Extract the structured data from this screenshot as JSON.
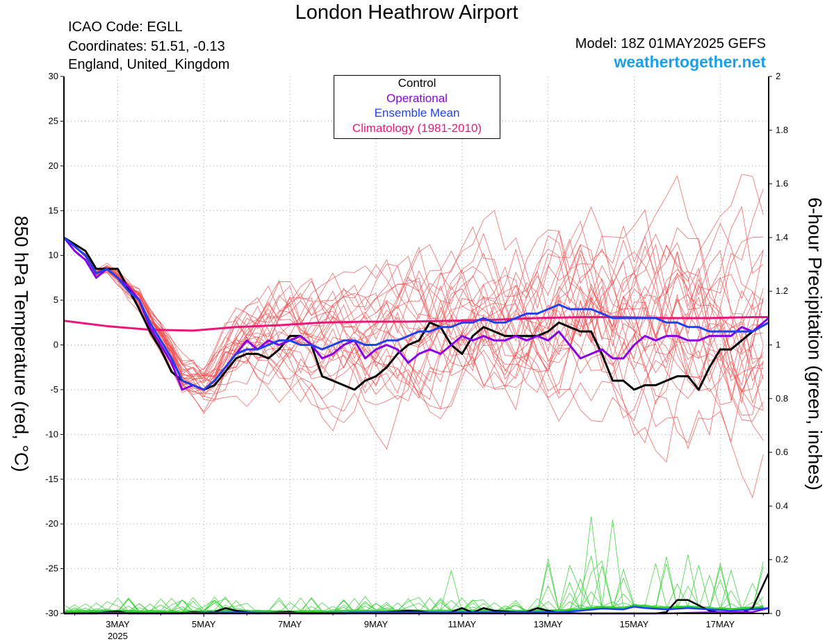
{
  "header": {
    "title": "London Heathrow Airport",
    "icao": "ICAO Code: EGLL",
    "coordinates": "Coordinates: 51.51, -0.13",
    "region": "England, United_Kingdom",
    "model": "Model: 18Z 01MAY2025 GEFS",
    "site": "weathertogether.net"
  },
  "legend": {
    "control": "Control",
    "operational": "Operational",
    "ensemble_mean": "Ensemble Mean",
    "climatology": "Climatology (1981-2010)"
  },
  "colors": {
    "control": "#000000",
    "operational": "#8a00e6",
    "ensemble_mean": "#2040f0",
    "climatology": "#e8187a",
    "members_temp": "#f05050",
    "members_precip": "#30d030",
    "site": "#17a0f0"
  },
  "chart_data": {
    "type": "line",
    "ylabel": "850 hPa Temperature (red, °C)",
    "y2label": "6-hour Precipitation (green, inches)",
    "ylim": [
      -30,
      30
    ],
    "y2lim": [
      0,
      2
    ],
    "yticks": [
      "30",
      "25",
      "20",
      "15",
      "10",
      "5",
      "0",
      "-5",
      "-10",
      "-15",
      "-20",
      "-25",
      "-30"
    ],
    "y2ticks": [
      "2",
      "1.8",
      "1.6",
      "1.4",
      "1.2",
      "1",
      "0.8",
      "0.6",
      "0.4",
      "0.2",
      "0"
    ],
    "xlim": [
      0,
      16.375
    ],
    "xticks": [
      {
        "day": 1.25,
        "label": "3MAY"
      },
      {
        "day": 3.25,
        "label": "5MAY"
      },
      {
        "day": 5.25,
        "label": "7MAY"
      },
      {
        "day": 7.25,
        "label": "9MAY"
      },
      {
        "day": 9.25,
        "label": "11MAY"
      },
      {
        "day": 11.25,
        "label": "13MAY"
      },
      {
        "day": 13.25,
        "label": "15MAY"
      },
      {
        "day": 15.25,
        "label": "17MAY"
      }
    ],
    "year_label": "2025",
    "grid": true,
    "legend_position": "top-center",
    "series": [
      {
        "name": "Control",
        "points": [
          [
            0,
            12
          ],
          [
            0.5,
            10.5
          ],
          [
            0.75,
            8.5
          ],
          [
            1.25,
            8.5
          ],
          [
            1.75,
            4
          ],
          [
            2,
            1.5
          ],
          [
            2.25,
            -0.5
          ],
          [
            2.5,
            -3
          ],
          [
            2.75,
            -4
          ],
          [
            3,
            -4.5
          ],
          [
            3.25,
            -5
          ],
          [
            3.5,
            -4.5
          ],
          [
            3.75,
            -3
          ],
          [
            4,
            -1.5
          ],
          [
            4.25,
            -1
          ],
          [
            4.5,
            -1
          ],
          [
            4.75,
            -1.5
          ],
          [
            5,
            -0.5
          ],
          [
            5.25,
            1
          ],
          [
            5.5,
            1
          ],
          [
            5.75,
            0
          ],
          [
            6,
            -3.5
          ],
          [
            6.25,
            -4
          ],
          [
            6.5,
            -4.5
          ],
          [
            6.75,
            -5
          ],
          [
            7,
            -4
          ],
          [
            7.25,
            -3.5
          ],
          [
            7.5,
            -2.5
          ],
          [
            7.75,
            -1
          ],
          [
            8,
            0
          ],
          [
            8.25,
            0.5
          ],
          [
            8.5,
            2.5
          ],
          [
            8.75,
            2
          ],
          [
            9,
            0
          ],
          [
            9.25,
            -1
          ],
          [
            9.5,
            1
          ],
          [
            9.75,
            2
          ],
          [
            10,
            1.5
          ],
          [
            10.25,
            1
          ],
          [
            10.5,
            1
          ],
          [
            10.75,
            1
          ],
          [
            11,
            1
          ],
          [
            11.25,
            1.5
          ],
          [
            11.5,
            2.5
          ],
          [
            11.75,
            2
          ],
          [
            12,
            1.5
          ],
          [
            12.25,
            1.5
          ],
          [
            12.5,
            -1
          ],
          [
            12.75,
            -4
          ],
          [
            13,
            -4
          ],
          [
            13.25,
            -5
          ],
          [
            13.5,
            -4.5
          ],
          [
            13.75,
            -4.5
          ],
          [
            14,
            -4
          ],
          [
            14.25,
            -3.5
          ],
          [
            14.5,
            -3.5
          ],
          [
            14.75,
            -5
          ],
          [
            15,
            -2.5
          ],
          [
            15.25,
            -0.5
          ],
          [
            15.5,
            -0.5
          ],
          [
            15.75,
            0.5
          ],
          [
            16,
            1.5
          ],
          [
            16.375,
            2.5
          ]
        ]
      },
      {
        "name": "Operational",
        "points": [
          [
            0,
            12
          ],
          [
            0.25,
            10.5
          ],
          [
            0.5,
            9.5
          ],
          [
            0.75,
            7.5
          ],
          [
            1,
            8.5
          ],
          [
            1.25,
            7.5
          ],
          [
            1.5,
            6.5
          ],
          [
            1.75,
            5
          ],
          [
            2,
            2
          ],
          [
            2.25,
            0
          ],
          [
            2.5,
            -2
          ],
          [
            2.75,
            -5
          ],
          [
            3,
            -4.5
          ],
          [
            3.25,
            -5
          ],
          [
            3.5,
            -4
          ],
          [
            3.75,
            -2.5
          ],
          [
            4,
            -1
          ],
          [
            4.25,
            0.5
          ],
          [
            4.5,
            -0.5
          ],
          [
            4.75,
            0.5
          ],
          [
            5,
            0
          ],
          [
            5.25,
            0.5
          ],
          [
            5.5,
            1
          ],
          [
            5.75,
            0
          ],
          [
            6,
            -1.5
          ],
          [
            6.25,
            -1
          ],
          [
            6.5,
            0
          ],
          [
            6.75,
            0.5
          ],
          [
            7,
            -1.5
          ],
          [
            7.25,
            -0.5
          ],
          [
            7.5,
            0
          ],
          [
            7.75,
            -0.5
          ],
          [
            8,
            -2
          ],
          [
            8.25,
            -1
          ],
          [
            8.5,
            -0.5
          ],
          [
            8.75,
            -1
          ],
          [
            9,
            0
          ],
          [
            9.25,
            1
          ],
          [
            9.5,
            0.5
          ],
          [
            9.75,
            1
          ],
          [
            10,
            0.5
          ],
          [
            10.25,
            0.5
          ],
          [
            10.5,
            1
          ],
          [
            10.75,
            0.5
          ],
          [
            11,
            1
          ],
          [
            11.25,
            0.5
          ],
          [
            11.5,
            1.5
          ],
          [
            11.75,
            0
          ],
          [
            12,
            -1.5
          ],
          [
            12.25,
            -1
          ],
          [
            12.5,
            -0.5
          ],
          [
            12.75,
            -1.5
          ],
          [
            13,
            -1.5
          ],
          [
            13.25,
            0
          ],
          [
            13.5,
            1
          ],
          [
            13.75,
            0.5
          ],
          [
            14,
            1
          ],
          [
            14.25,
            1
          ],
          [
            14.5,
            0.5
          ],
          [
            14.75,
            0.5
          ],
          [
            15,
            1
          ],
          [
            15.25,
            1
          ],
          [
            15.5,
            1
          ],
          [
            15.75,
            2
          ],
          [
            16,
            1.5
          ],
          [
            16.375,
            3
          ]
        ]
      },
      {
        "name": "Ensemble Mean",
        "points": [
          [
            0,
            12
          ],
          [
            0.5,
            10
          ],
          [
            0.75,
            8
          ],
          [
            1,
            8.5
          ],
          [
            1.25,
            7.5
          ],
          [
            1.5,
            6
          ],
          [
            1.75,
            5
          ],
          [
            2,
            2.5
          ],
          [
            2.25,
            0.5
          ],
          [
            2.5,
            -1.5
          ],
          [
            2.75,
            -4
          ],
          [
            3,
            -4.5
          ],
          [
            3.25,
            -5
          ],
          [
            3.5,
            -4
          ],
          [
            3.75,
            -2.5
          ],
          [
            4,
            -1
          ],
          [
            4.25,
            -0.5
          ],
          [
            4.5,
            -0.5
          ],
          [
            4.75,
            0
          ],
          [
            5,
            0.5
          ],
          [
            5.25,
            0.5
          ],
          [
            5.5,
            0
          ],
          [
            5.75,
            0
          ],
          [
            6,
            -0.5
          ],
          [
            6.25,
            0
          ],
          [
            6.5,
            0.5
          ],
          [
            6.75,
            0.5
          ],
          [
            7,
            0
          ],
          [
            7.25,
            0
          ],
          [
            7.5,
            0.5
          ],
          [
            7.75,
            0.5
          ],
          [
            8,
            1
          ],
          [
            8.25,
            1.5
          ],
          [
            8.5,
            1.5
          ],
          [
            8.75,
            2
          ],
          [
            9,
            2
          ],
          [
            9.25,
            2.5
          ],
          [
            9.5,
            2.5
          ],
          [
            9.75,
            3
          ],
          [
            10,
            2.5
          ],
          [
            10.25,
            2.5
          ],
          [
            10.5,
            3
          ],
          [
            10.75,
            3.5
          ],
          [
            11,
            3.5
          ],
          [
            11.25,
            4
          ],
          [
            11.5,
            4.5
          ],
          [
            11.75,
            4
          ],
          [
            12,
            4
          ],
          [
            12.25,
            4
          ],
          [
            12.5,
            3.5
          ],
          [
            12.75,
            3
          ],
          [
            13,
            3
          ],
          [
            13.25,
            3
          ],
          [
            13.5,
            3
          ],
          [
            13.75,
            3
          ],
          [
            14,
            2.5
          ],
          [
            14.25,
            2.5
          ],
          [
            14.5,
            2
          ],
          [
            14.75,
            2
          ],
          [
            15,
            1.5
          ],
          [
            15.25,
            1.5
          ],
          [
            15.5,
            1.5
          ],
          [
            15.75,
            1.5
          ],
          [
            16,
            1.5
          ],
          [
            16.375,
            2.5
          ]
        ]
      },
      {
        "name": "Climatology (1981-2010)",
        "points": [
          [
            0,
            2.7
          ],
          [
            1,
            2.1
          ],
          [
            2,
            1.7
          ],
          [
            3,
            1.6
          ],
          [
            4,
            2
          ],
          [
            5,
            2.2
          ],
          [
            6,
            2.5
          ],
          [
            7,
            2.6
          ],
          [
            8,
            2.6
          ],
          [
            9,
            2.7
          ],
          [
            10,
            2.8
          ],
          [
            11,
            3
          ],
          [
            12,
            3.1
          ],
          [
            13,
            3.1
          ],
          [
            14,
            3
          ],
          [
            15,
            3
          ],
          [
            16,
            3.1
          ],
          [
            16.375,
            3.1
          ]
        ]
      }
    ],
    "precip_series": [
      {
        "name": "Control",
        "points": [
          [
            0,
            0
          ],
          [
            0.75,
            0
          ],
          [
            1,
            0.005
          ],
          [
            1.25,
            0.008
          ],
          [
            1.5,
            0
          ],
          [
            2,
            0
          ],
          [
            2.5,
            0
          ],
          [
            2.75,
            0
          ],
          [
            3,
            0.005
          ],
          [
            3.25,
            0.003
          ],
          [
            3.5,
            0.005
          ],
          [
            3.75,
            0.02
          ],
          [
            4,
            0.01
          ],
          [
            4.5,
            0
          ],
          [
            5,
            0.004
          ],
          [
            5.25,
            0.006
          ],
          [
            5.5,
            0
          ],
          [
            6,
            0
          ],
          [
            6.5,
            0
          ],
          [
            7,
            0.003
          ],
          [
            7.5,
            0.005
          ],
          [
            8,
            0.01
          ],
          [
            8.25,
            0.008
          ],
          [
            8.5,
            0.003
          ],
          [
            8.75,
            0
          ],
          [
            9,
            0.005
          ],
          [
            9.25,
            0.02
          ],
          [
            9.5,
            0.003
          ],
          [
            9.75,
            0.02
          ],
          [
            10,
            0.01
          ],
          [
            10.5,
            0.005
          ],
          [
            10.75,
            0.005
          ],
          [
            11,
            0.02
          ],
          [
            11.25,
            0.01
          ],
          [
            11.5,
            0.003
          ],
          [
            12,
            0
          ],
          [
            12.5,
            0
          ],
          [
            13,
            0
          ],
          [
            13.5,
            0
          ],
          [
            13.75,
            0
          ],
          [
            14,
            0.005
          ],
          [
            14.25,
            0.05
          ],
          [
            14.5,
            0.05
          ],
          [
            14.75,
            0.03
          ],
          [
            15,
            0.01
          ],
          [
            15.25,
            0.003
          ],
          [
            15.5,
            0
          ],
          [
            15.75,
            0.002
          ],
          [
            16,
            0.02
          ],
          [
            16.375,
            0.15
          ]
        ]
      },
      {
        "name": "Operational",
        "points": [
          [
            0,
            0
          ],
          [
            2,
            0
          ],
          [
            4,
            0
          ],
          [
            6,
            0
          ],
          [
            8,
            0
          ],
          [
            10,
            0
          ],
          [
            12,
            0
          ],
          [
            14,
            0
          ],
          [
            15,
            0.004
          ],
          [
            16,
            0.005
          ],
          [
            16.375,
            0.02
          ]
        ]
      },
      {
        "name": "Ensemble Mean",
        "points": [
          [
            0,
            0
          ],
          [
            1,
            0.003
          ],
          [
            2,
            0.001
          ],
          [
            3,
            0.002
          ],
          [
            4,
            0.004
          ],
          [
            5,
            0.002
          ],
          [
            6,
            0.002
          ],
          [
            7,
            0.004
          ],
          [
            8,
            0.004
          ],
          [
            9,
            0.004
          ],
          [
            10,
            0.004
          ],
          [
            11,
            0.004
          ],
          [
            11.5,
            0.005
          ],
          [
            12,
            0.01
          ],
          [
            12.5,
            0.018
          ],
          [
            13,
            0.015
          ],
          [
            13.25,
            0.025
          ],
          [
            13.5,
            0.02
          ],
          [
            14,
            0.015
          ],
          [
            14.5,
            0.02
          ],
          [
            15,
            0.015
          ],
          [
            15.5,
            0.01
          ],
          [
            16,
            0.015
          ],
          [
            16.375,
            0.02
          ]
        ]
      }
    ]
  }
}
